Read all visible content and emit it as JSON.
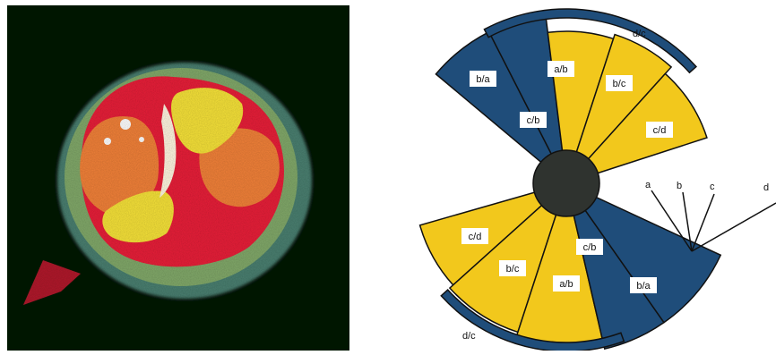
{
  "photo": {
    "colors": {
      "background": "#0f1a10",
      "red": "#e8203a",
      "orange": "#f2823a",
      "yellow": "#f6e23a",
      "green_rim": "#8cb06a",
      "teal_rim": "#5a9a8a"
    }
  },
  "diagram": {
    "colors": {
      "blue": "#1f4d7a",
      "yellow": "#f2c81c",
      "outline": "#111111",
      "hub": "#2f332f"
    },
    "upper_sectors": [
      {
        "label": "b/a",
        "fill": "blue"
      },
      {
        "label": "c/b",
        "fill": "blue"
      },
      {
        "label": "a/b",
        "fill": "yellow"
      },
      {
        "label": "b/c",
        "fill": "yellow"
      },
      {
        "label": "c/d",
        "fill": "yellow"
      }
    ],
    "lower_sectors": [
      {
        "label": "c/d",
        "fill": "yellow"
      },
      {
        "label": "b/c",
        "fill": "yellow"
      },
      {
        "label": "a/b",
        "fill": "yellow"
      },
      {
        "label": "c/b",
        "fill": "blue"
      },
      {
        "label": "b/a",
        "fill": "blue"
      }
    ],
    "edge_labels": {
      "top": "d/c",
      "bottom": "d/c"
    },
    "vertex_labels": [
      "a",
      "b",
      "c",
      "d"
    ]
  }
}
